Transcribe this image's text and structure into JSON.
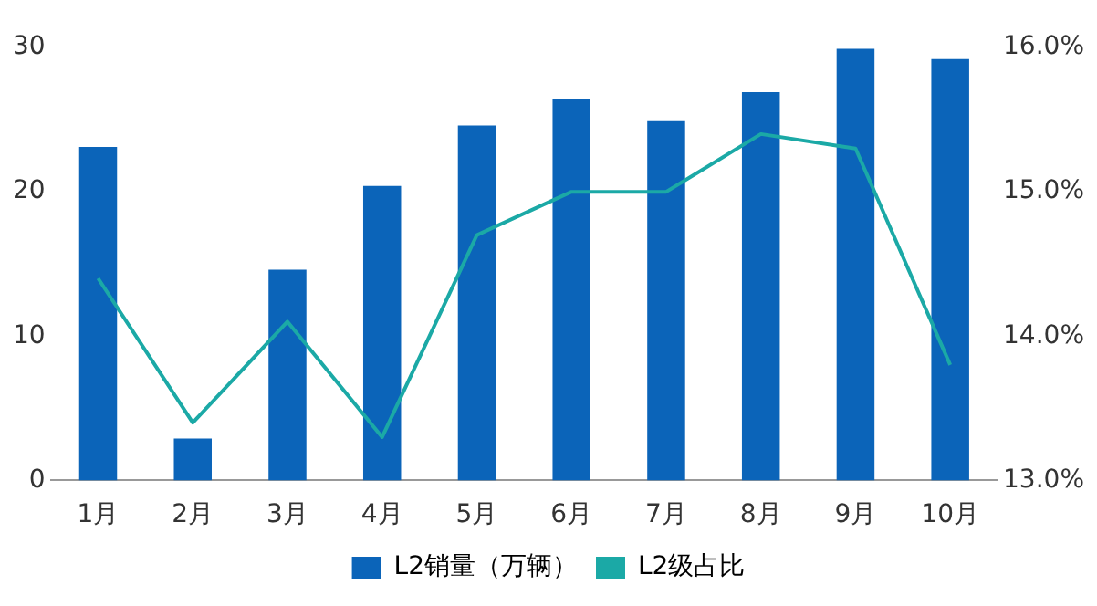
{
  "chart_data": {
    "type": "bar",
    "categories": [
      "1月",
      "2月",
      "3月",
      "4月",
      "5月",
      "6月",
      "7月",
      "8月",
      "9月",
      "10月"
    ],
    "series": [
      {
        "name": "L2销量（万辆）",
        "color": "#0b64b9",
        "values": [
          23.1,
          2.9,
          14.6,
          20.4,
          24.6,
          26.4,
          24.9,
          26.9,
          29.9,
          29.2
        ]
      },
      {
        "name": "L2级占比",
        "type": "line",
        "axis": "y2",
        "color": "#1ba9a6",
        "values": [
          14.4,
          13.4,
          14.1,
          13.3,
          14.7,
          15.0,
          15.0,
          15.4,
          15.3,
          13.8
        ]
      }
    ],
    "ylim": [
      0,
      30
    ],
    "yticks": [
      0,
      10,
      20,
      30
    ],
    "y2lim": [
      13,
      16
    ],
    "y2ticks": [
      {
        "value": 13,
        "label": "13.0%"
      },
      {
        "value": 14,
        "label": "14.0%"
      },
      {
        "value": 15,
        "label": "15.0%"
      },
      {
        "value": 16,
        "label": "16.0%"
      }
    ],
    "grid": false,
    "legend": "bottom",
    "marker": "none"
  }
}
